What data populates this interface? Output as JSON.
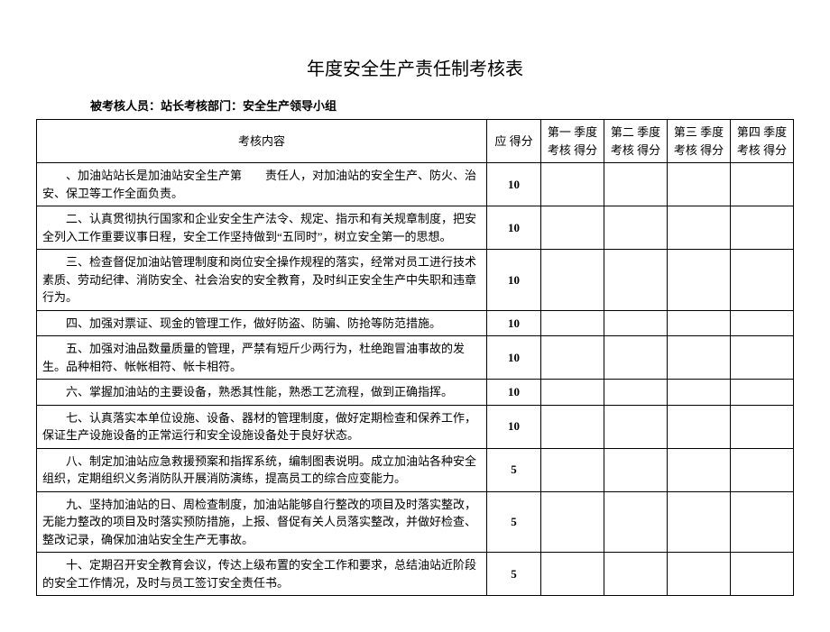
{
  "title": "年度安全生产责任制考核表",
  "subhead": "被考核人员：站长考核部门：安全生产领导小组",
  "headers": {
    "content": "考核内容",
    "ying": "应 得分",
    "q1": "第一 季度 考核 得分",
    "q2": "第二 季度 考核 得分",
    "q3": "第三 季度 考核 得分",
    "q4": "第四 季度 考核 得分"
  },
  "rows": [
    {
      "content": "、加油站站长是加油站安全生产第　　责任人，对加油站的安全生产、防火、治安、保卫等工作全面负责。",
      "score": "10"
    },
    {
      "content": "二、认真贯彻执行国家和企业安全生产法令、规定、指示和有关规章制度，把安全列入工作重要议事日程，安全工作坚持做到“五同时”，树立安全第一的思想。",
      "score": "10"
    },
    {
      "content": "三、检查督促加油站管理制度和岗位安全操作规程的落实，经常对员工进行技术素质、劳动纪律、消防安全、社会治安的安全教育，及时纠正安全生产中失职和违章行为。",
      "score": "10"
    },
    {
      "content": "四、加强对票证、现金的管理工作，做好防盗、防骗、防抢等防范措施。",
      "score": "10"
    },
    {
      "content": "五、加强对油品数量质量的管理，严禁有短斤少两行为，杜绝跑冒油事故的发生。品种相符、帐帐相符、帐卡相符。",
      "score": "10"
    },
    {
      "content": "六、掌握加油站的主要设备，熟悉其性能，熟悉工艺流程，做到正确指挥。",
      "score": "10"
    },
    {
      "content": "七、认真落实本单位设施、设备、器材的管理制度，做好定期检查和保养工作，保证生产设施设备的正常运行和安全设施设备处于良好状态。",
      "score": "10"
    },
    {
      "content": "八、制定加油站应急救援预案和指挥系统，编制图表说明。成立加油站各种安全组织，定期组织义务消防队开展消防演练，提高员工的综合应变能力。",
      "score": "5"
    },
    {
      "content": "九、坚持加油站的日、周检查制度，加油站能够自行整改的项目及时落实整改，无能力整改的项目及时落实预防措施，上报、督促有关人员落实整改，并做好检查、整改记录，确保加油站安全生产无事故。",
      "score": "5"
    },
    {
      "content": "十、定期召开安全教育会议，传达上级布置的安全工作和要求，总结油站近阶段的安全工作情况，及时与员工签订安全责任书。",
      "score": "5"
    }
  ]
}
